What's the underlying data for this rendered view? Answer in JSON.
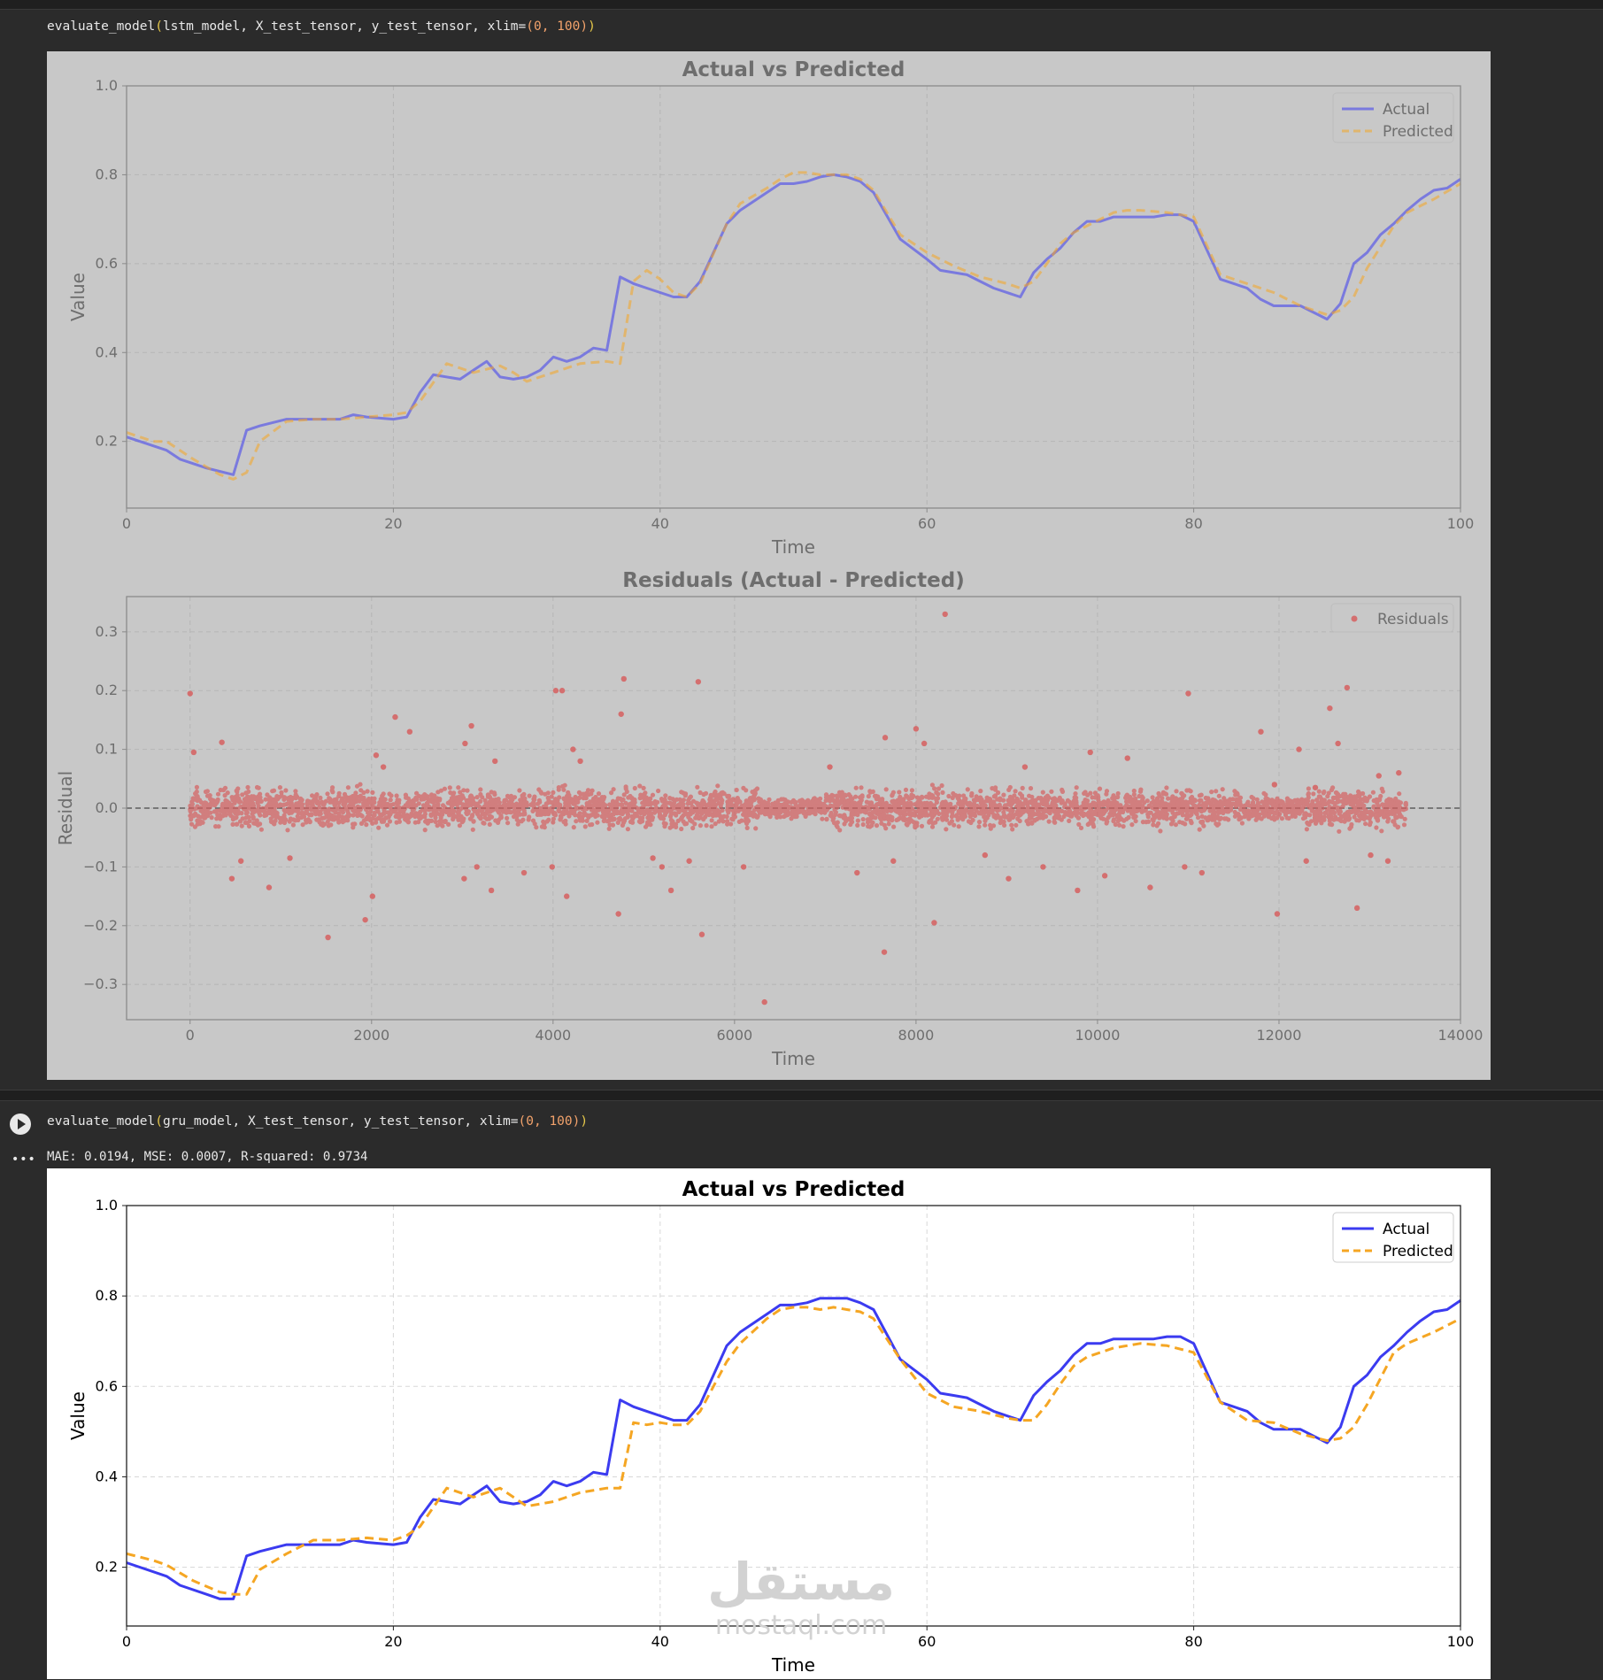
{
  "cell1": {
    "code": {
      "fn": "evaluate_model",
      "args": "lstm_model, X_test_tensor, y_test_tensor, xlim=",
      "paren_open": "(",
      "paren_close": ")",
      "tuple": "(0, 100)"
    }
  },
  "cell2": {
    "code": {
      "fn": "evaluate_model",
      "args": "gru_model, X_test_tensor, y_test_tensor, xlim=",
      "paren_open": "(",
      "paren_close": ")",
      "tuple": "(0, 100)"
    },
    "output_text": "MAE: 0.0194, MSE: 0.0007, R-squared: 0.9734",
    "run_icon": "play-icon",
    "more_icon": "more-horizontal-icon"
  },
  "watermark": {
    "arabic": "مستقل",
    "latin": "mostaql.com"
  },
  "colors": {
    "actual": "#3b3bf0",
    "predicted": "#f5a623",
    "residual": "#d65f5f",
    "dimmed_bg": "#c8c8c8"
  },
  "chart_data": [
    {
      "id": "lstm-actual-vs-predicted",
      "type": "line",
      "title": "Actual vs Predicted",
      "xlabel": "Time",
      "ylabel": "Value",
      "xlim": [
        0,
        100
      ],
      "ylim": [
        0.05,
        1.0
      ],
      "xticks": [
        0,
        20,
        40,
        60,
        80,
        100
      ],
      "yticks": [
        0.2,
        0.4,
        0.6,
        0.8,
        1.0
      ],
      "grid": true,
      "legend": "top-right",
      "series": [
        {
          "name": "Actual",
          "style": "solid",
          "x": [
            0,
            3,
            4,
            6,
            8,
            9,
            10,
            12,
            14,
            16,
            17,
            18,
            20,
            21,
            22,
            23,
            25,
            26,
            27,
            28,
            29,
            30,
            31,
            32,
            33,
            34,
            35,
            36,
            37,
            38,
            39,
            40,
            41,
            42,
            43,
            45,
            46,
            48,
            49,
            50,
            51,
            52,
            53,
            54,
            55,
            56,
            58,
            60,
            61,
            62,
            63,
            65,
            67,
            68,
            69,
            70,
            71,
            72,
            73,
            74,
            75,
            76,
            77,
            78,
            79,
            80,
            82,
            84,
            85,
            86,
            88,
            90,
            91,
            92,
            93,
            94,
            95,
            96,
            97,
            98,
            99,
            100
          ],
          "y": [
            0.21,
            0.18,
            0.16,
            0.14,
            0.125,
            0.225,
            0.235,
            0.25,
            0.25,
            0.25,
            0.26,
            0.255,
            0.25,
            0.255,
            0.31,
            0.35,
            0.34,
            0.36,
            0.38,
            0.345,
            0.34,
            0.345,
            0.36,
            0.39,
            0.38,
            0.39,
            0.41,
            0.405,
            0.57,
            0.555,
            0.545,
            0.535,
            0.525,
            0.525,
            0.56,
            0.69,
            0.72,
            0.76,
            0.78,
            0.78,
            0.785,
            0.795,
            0.8,
            0.795,
            0.785,
            0.76,
            0.655,
            0.61,
            0.585,
            0.58,
            0.575,
            0.545,
            0.525,
            0.58,
            0.61,
            0.635,
            0.67,
            0.695,
            0.695,
            0.705,
            0.705,
            0.705,
            0.705,
            0.71,
            0.71,
            0.695,
            0.565,
            0.545,
            0.52,
            0.505,
            0.505,
            0.475,
            0.51,
            0.6,
            0.625,
            0.665,
            0.69,
            0.72,
            0.745,
            0.765,
            0.77,
            0.79
          ]
        },
        {
          "name": "Predicted",
          "style": "dashed",
          "x": [
            0,
            2,
            3,
            5,
            7,
            8,
            9,
            10,
            12,
            14,
            16,
            18,
            20,
            21,
            22,
            24,
            26,
            28,
            29,
            30,
            32,
            34,
            36,
            37,
            38,
            39,
            40,
            41,
            42,
            43,
            45,
            46,
            48,
            49,
            50,
            51,
            52,
            53,
            54,
            55,
            56,
            58,
            60,
            62,
            64,
            66,
            67,
            68,
            69,
            70,
            71,
            72,
            74,
            75,
            76,
            78,
            80,
            82,
            84,
            86,
            88,
            90,
            91,
            92,
            93,
            95,
            96,
            98,
            100
          ],
          "y": [
            0.22,
            0.2,
            0.2,
            0.16,
            0.125,
            0.115,
            0.13,
            0.2,
            0.245,
            0.25,
            0.25,
            0.255,
            0.26,
            0.265,
            0.29,
            0.375,
            0.355,
            0.37,
            0.355,
            0.335,
            0.355,
            0.375,
            0.38,
            0.375,
            0.56,
            0.585,
            0.565,
            0.535,
            0.525,
            0.555,
            0.69,
            0.735,
            0.77,
            0.79,
            0.805,
            0.805,
            0.8,
            0.8,
            0.8,
            0.79,
            0.765,
            0.665,
            0.625,
            0.595,
            0.57,
            0.555,
            0.545,
            0.56,
            0.6,
            0.645,
            0.67,
            0.685,
            0.715,
            0.72,
            0.72,
            0.715,
            0.705,
            0.575,
            0.555,
            0.535,
            0.505,
            0.485,
            0.495,
            0.525,
            0.59,
            0.685,
            0.715,
            0.745,
            0.78
          ]
        }
      ]
    },
    {
      "id": "lstm-residuals",
      "type": "scatter",
      "title": "Residuals (Actual - Predicted)",
      "xlabel": "Time",
      "ylabel": "Residual",
      "xlim": [
        -700,
        14000
      ],
      "ylim": [
        -0.36,
        0.36
      ],
      "xticks": [
        0,
        2000,
        4000,
        6000,
        8000,
        10000,
        12000,
        14000
      ],
      "yticks": [
        -0.3,
        -0.2,
        -0.1,
        0.0,
        0.1,
        0.2,
        0.3
      ],
      "grid": true,
      "legend": "top-right",
      "reference_line": 0.0,
      "series": [
        {
          "name": "Residuals",
          "x": [
            0,
            40,
            350,
            460,
            560,
            870,
            1100,
            1520,
            1930,
            2010,
            2050,
            2130,
            2260,
            2420,
            3020,
            3030,
            3100,
            3160,
            3320,
            3360,
            3680,
            3990,
            4030,
            4100,
            4150,
            4220,
            4300,
            4720,
            4750,
            4780,
            5100,
            5200,
            5300,
            5500,
            5600,
            5640,
            6100,
            6330,
            7050,
            7350,
            7650,
            7660,
            7750,
            8000,
            8090,
            8200,
            8320,
            8760,
            9020,
            9200,
            9400,
            9780,
            9920,
            10080,
            10330,
            10580,
            10960,
            11000,
            11150,
            11800,
            11950,
            11980,
            12220,
            12300,
            12400,
            12560,
            12650,
            12750,
            12860,
            13010,
            13100,
            13200,
            13320
          ],
          "y": [
            0.195,
            0.095,
            0.112,
            -0.12,
            -0.09,
            -0.135,
            -0.085,
            -0.22,
            -0.19,
            -0.15,
            0.09,
            0.07,
            0.155,
            0.13,
            -0.12,
            0.11,
            0.14,
            -0.1,
            -0.14,
            0.08,
            -0.11,
            -0.1,
            0.2,
            0.2,
            -0.15,
            0.1,
            0.08,
            -0.18,
            0.16,
            0.22,
            -0.085,
            -0.1,
            -0.14,
            -0.09,
            0.215,
            -0.215,
            -0.1,
            -0.33,
            0.07,
            -0.11,
            -0.245,
            0.12,
            -0.09,
            0.135,
            0.11,
            -0.195,
            0.33,
            -0.08,
            -0.12,
            0.07,
            -0.1,
            -0.14,
            0.095,
            -0.115,
            0.085,
            -0.135,
            -0.1,
            0.195,
            -0.11,
            0.13,
            0.04,
            -0.18,
            0.1,
            -0.09,
            0.035,
            0.17,
            0.11,
            0.205,
            -0.17,
            -0.08,
            0.055,
            -0.09,
            0.06
          ]
        }
      ]
    },
    {
      "id": "gru-actual-vs-predicted",
      "type": "line",
      "title": "Actual vs Predicted",
      "xlabel": "Time",
      "ylabel": "Value",
      "xlim": [
        0,
        100
      ],
      "ylim": [
        0.07,
        1.0
      ],
      "xticks": [
        0,
        20,
        40,
        60,
        80,
        100
      ],
      "yticks": [
        0.2,
        0.4,
        0.6,
        0.8,
        1.0
      ],
      "grid": true,
      "legend": "top-right",
      "series": [
        {
          "name": "Actual",
          "style": "solid",
          "x": [
            0,
            3,
            4,
            6,
            7,
            8,
            9,
            10,
            12,
            14,
            16,
            17,
            18,
            20,
            21,
            22,
            23,
            25,
            26,
            27,
            28,
            29,
            30,
            31,
            32,
            33,
            34,
            35,
            36,
            37,
            38,
            39,
            40,
            41,
            42,
            43,
            45,
            46,
            48,
            49,
            50,
            51,
            52,
            53,
            54,
            55,
            56,
            58,
            60,
            61,
            62,
            63,
            65,
            67,
            68,
            69,
            70,
            71,
            72,
            73,
            74,
            75,
            76,
            77,
            78,
            79,
            80,
            82,
            84,
            85,
            86,
            88,
            90,
            91,
            92,
            93,
            94,
            95,
            96,
            97,
            98,
            99,
            100
          ],
          "y": [
            0.21,
            0.18,
            0.16,
            0.14,
            0.13,
            0.13,
            0.225,
            0.235,
            0.25,
            0.25,
            0.25,
            0.26,
            0.255,
            0.25,
            0.255,
            0.31,
            0.35,
            0.34,
            0.36,
            0.38,
            0.345,
            0.34,
            0.345,
            0.36,
            0.39,
            0.38,
            0.39,
            0.41,
            0.405,
            0.57,
            0.555,
            0.545,
            0.535,
            0.525,
            0.525,
            0.56,
            0.69,
            0.72,
            0.76,
            0.78,
            0.78,
            0.785,
            0.795,
            0.795,
            0.795,
            0.785,
            0.77,
            0.66,
            0.615,
            0.585,
            0.58,
            0.575,
            0.545,
            0.525,
            0.58,
            0.61,
            0.635,
            0.67,
            0.695,
            0.695,
            0.705,
            0.705,
            0.705,
            0.705,
            0.71,
            0.71,
            0.695,
            0.565,
            0.545,
            0.52,
            0.505,
            0.505,
            0.475,
            0.51,
            0.6,
            0.625,
            0.665,
            0.69,
            0.72,
            0.745,
            0.765,
            0.77,
            0.79
          ]
        },
        {
          "name": "Predicted",
          "style": "dashed",
          "x": [
            0,
            2,
            3,
            5,
            7,
            8,
            9,
            10,
            12,
            14,
            16,
            18,
            20,
            21,
            22,
            24,
            26,
            28,
            29,
            30,
            32,
            34,
            36,
            37,
            38,
            39,
            40,
            41,
            42,
            43,
            45,
            46,
            48,
            49,
            50,
            51,
            52,
            53,
            54,
            55,
            56,
            58,
            60,
            62,
            64,
            66,
            67,
            68,
            69,
            70,
            71,
            72,
            74,
            75,
            76,
            78,
            80,
            82,
            84,
            86,
            88,
            90,
            91,
            92,
            93,
            95,
            96,
            98,
            100
          ],
          "y": [
            0.23,
            0.215,
            0.205,
            0.17,
            0.145,
            0.14,
            0.14,
            0.195,
            0.23,
            0.26,
            0.26,
            0.265,
            0.26,
            0.27,
            0.29,
            0.375,
            0.355,
            0.375,
            0.355,
            0.335,
            0.345,
            0.365,
            0.375,
            0.375,
            0.52,
            0.515,
            0.52,
            0.515,
            0.515,
            0.545,
            0.655,
            0.695,
            0.75,
            0.77,
            0.775,
            0.775,
            0.77,
            0.775,
            0.77,
            0.765,
            0.75,
            0.66,
            0.585,
            0.555,
            0.545,
            0.53,
            0.525,
            0.525,
            0.56,
            0.605,
            0.645,
            0.665,
            0.685,
            0.69,
            0.695,
            0.69,
            0.675,
            0.565,
            0.525,
            0.52,
            0.495,
            0.48,
            0.485,
            0.51,
            0.56,
            0.675,
            0.695,
            0.72,
            0.75
          ]
        }
      ]
    }
  ]
}
